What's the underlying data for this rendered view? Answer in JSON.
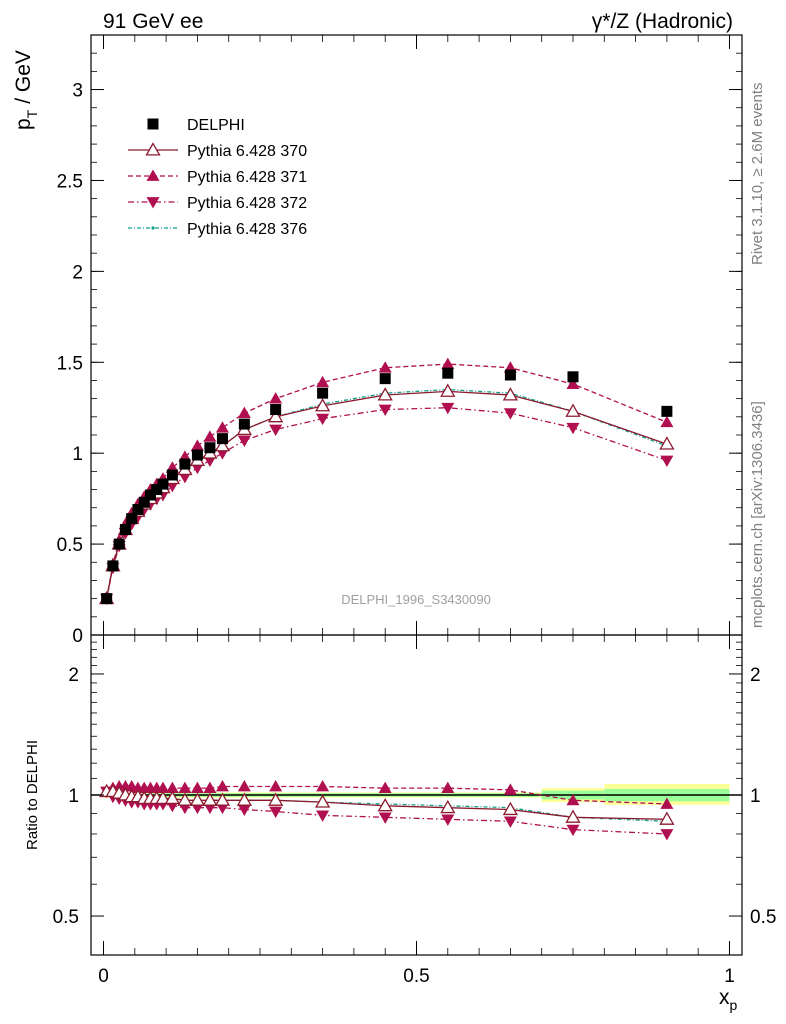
{
  "header": {
    "left": "91 GeV ee",
    "right": "γ*/Z (Hadronic)"
  },
  "side": {
    "rivet": "Rivet 3.1.10, ≥ 2.6M events",
    "mcplots": "mcplots.cern.ch [arXiv:1306.3436]"
  },
  "analysis_id": "DELPHI_1996_S3430090",
  "colors": {
    "data": "#000000",
    "p370": "#8b1a2e",
    "p371": "#b0104f",
    "p372": "#b0104f",
    "p376": "#13a08a",
    "band_yellow": "#ffff99",
    "band_green": "#99ff99"
  },
  "chart_data": [
    {
      "type": "scatter",
      "panel": "main",
      "ylabel_main": "p",
      "ylabel_sub": "T",
      "ylabel_unit": "/ GeV",
      "xlim": [
        -0.02,
        1.02
      ],
      "ylim": [
        0,
        3.3
      ],
      "yticks": [
        0,
        0.5,
        1,
        1.5,
        2,
        2.5,
        3
      ],
      "ytick_labels": [
        "0",
        "0.5",
        "1",
        "1.5",
        "2",
        "2.5",
        "3"
      ],
      "legend_position": "top-left",
      "x": [
        0.005,
        0.015,
        0.025,
        0.035,
        0.045,
        0.055,
        0.065,
        0.075,
        0.085,
        0.095,
        0.11,
        0.13,
        0.15,
        0.17,
        0.19,
        0.225,
        0.275,
        0.35,
        0.45,
        0.55,
        0.65,
        0.75,
        0.9
      ],
      "series": [
        {
          "name": "DELPHI",
          "key": "data",
          "marker": "square",
          "line": "none",
          "values": [
            0.2,
            0.38,
            0.5,
            0.58,
            0.64,
            0.69,
            0.73,
            0.77,
            0.8,
            0.83,
            0.88,
            0.94,
            0.99,
            1.03,
            1.08,
            1.16,
            1.24,
            1.33,
            1.41,
            1.44,
            1.43,
            1.42,
            1.23
          ]
        },
        {
          "name": "Pythia 6.428 370",
          "key": "p370",
          "marker": "triangle-up-open",
          "line": "solid",
          "values": [
            0.2,
            0.38,
            0.5,
            0.58,
            0.64,
            0.68,
            0.72,
            0.75,
            0.78,
            0.81,
            0.86,
            0.91,
            0.96,
            1.0,
            1.04,
            1.13,
            1.2,
            1.26,
            1.32,
            1.34,
            1.32,
            1.23,
            1.05
          ]
        },
        {
          "name": "Pythia 6.428 371",
          "key": "p371",
          "marker": "triangle-up-filled",
          "line": "dashed",
          "values": [
            0.2,
            0.39,
            0.52,
            0.61,
            0.67,
            0.72,
            0.76,
            0.8,
            0.83,
            0.86,
            0.92,
            0.98,
            1.04,
            1.09,
            1.14,
            1.22,
            1.3,
            1.39,
            1.47,
            1.49,
            1.47,
            1.38,
            1.17
          ]
        },
        {
          "name": "Pythia 6.428 372",
          "key": "p372",
          "marker": "triangle-down-filled",
          "line": "dashdot",
          "values": [
            0.2,
            0.37,
            0.49,
            0.56,
            0.61,
            0.65,
            0.69,
            0.72,
            0.75,
            0.77,
            0.82,
            0.87,
            0.92,
            0.96,
            1.0,
            1.07,
            1.13,
            1.19,
            1.24,
            1.25,
            1.22,
            1.14,
            0.96
          ]
        },
        {
          "name": "Pythia 6.428 376",
          "key": "p376",
          "marker": "dot",
          "line": "dashdot-fine",
          "values": [
            0.2,
            0.38,
            0.5,
            0.58,
            0.64,
            0.68,
            0.72,
            0.75,
            0.78,
            0.81,
            0.86,
            0.91,
            0.96,
            1.0,
            1.04,
            1.13,
            1.2,
            1.27,
            1.33,
            1.35,
            1.33,
            1.23,
            1.04
          ]
        }
      ]
    },
    {
      "type": "scatter",
      "panel": "ratio",
      "ylabel": "Ratio to DELPHI",
      "xlabel_main": "x",
      "xlabel_sub": "p",
      "xlim": [
        -0.02,
        1.02
      ],
      "xticks": [
        0,
        0.5,
        1
      ],
      "xtick_labels": [
        "0",
        "0.5",
        "1"
      ],
      "yscale": "log",
      "ylim": [
        0.4,
        2.5
      ],
      "yticks": [
        0.5,
        1,
        2
      ],
      "ytick_labels": [
        "0.5",
        "1",
        "2"
      ],
      "x": [
        0.005,
        0.015,
        0.025,
        0.035,
        0.045,
        0.055,
        0.065,
        0.075,
        0.085,
        0.095,
        0.11,
        0.13,
        0.15,
        0.17,
        0.19,
        0.225,
        0.275,
        0.35,
        0.45,
        0.55,
        0.65,
        0.75,
        0.9
      ],
      "bands": [
        {
          "x0": 0.0,
          "x1": 0.7,
          "yellow": [
            0.985,
            1.015
          ],
          "green": [
            0.99,
            1.01
          ]
        },
        {
          "x0": 0.7,
          "x1": 0.8,
          "yellow": [
            0.96,
            1.04
          ],
          "green": [
            0.975,
            1.025
          ]
        },
        {
          "x0": 0.8,
          "x1": 1.0,
          "yellow": [
            0.945,
            1.065
          ],
          "green": [
            0.965,
            1.035
          ]
        }
      ],
      "series": [
        {
          "name": "Pythia 6.428 370",
          "key": "p370",
          "marker": "triangle-up-open",
          "line": "solid",
          "values": [
            1.02,
            1.02,
            1.01,
            1.0,
            0.99,
            0.99,
            0.98,
            0.98,
            0.98,
            0.98,
            0.98,
            0.97,
            0.97,
            0.97,
            0.97,
            0.97,
            0.97,
            0.96,
            0.94,
            0.93,
            0.92,
            0.88,
            0.87
          ]
        },
        {
          "name": "Pythia 6.428 371",
          "key": "p371",
          "marker": "triangle-up-filled",
          "line": "dashed",
          "values": [
            1.02,
            1.04,
            1.05,
            1.05,
            1.05,
            1.04,
            1.04,
            1.04,
            1.04,
            1.04,
            1.04,
            1.04,
            1.04,
            1.04,
            1.05,
            1.05,
            1.05,
            1.05,
            1.04,
            1.04,
            1.03,
            0.97,
            0.95
          ]
        },
        {
          "name": "Pythia 6.428 372",
          "key": "p372",
          "marker": "triangle-down-filled",
          "line": "dashdot",
          "values": [
            1.02,
            0.99,
            0.98,
            0.97,
            0.96,
            0.96,
            0.95,
            0.95,
            0.95,
            0.95,
            0.94,
            0.93,
            0.93,
            0.93,
            0.93,
            0.92,
            0.91,
            0.89,
            0.88,
            0.87,
            0.86,
            0.82,
            0.8
          ]
        },
        {
          "name": "Pythia 6.428 376",
          "key": "p376",
          "marker": "dot",
          "line": "dashdot-fine",
          "values": [
            1.02,
            1.02,
            1.01,
            1.0,
            0.99,
            0.99,
            0.98,
            0.98,
            0.98,
            0.98,
            0.98,
            0.97,
            0.97,
            0.97,
            0.97,
            0.97,
            0.97,
            0.96,
            0.95,
            0.94,
            0.93,
            0.88,
            0.86
          ]
        }
      ]
    }
  ]
}
